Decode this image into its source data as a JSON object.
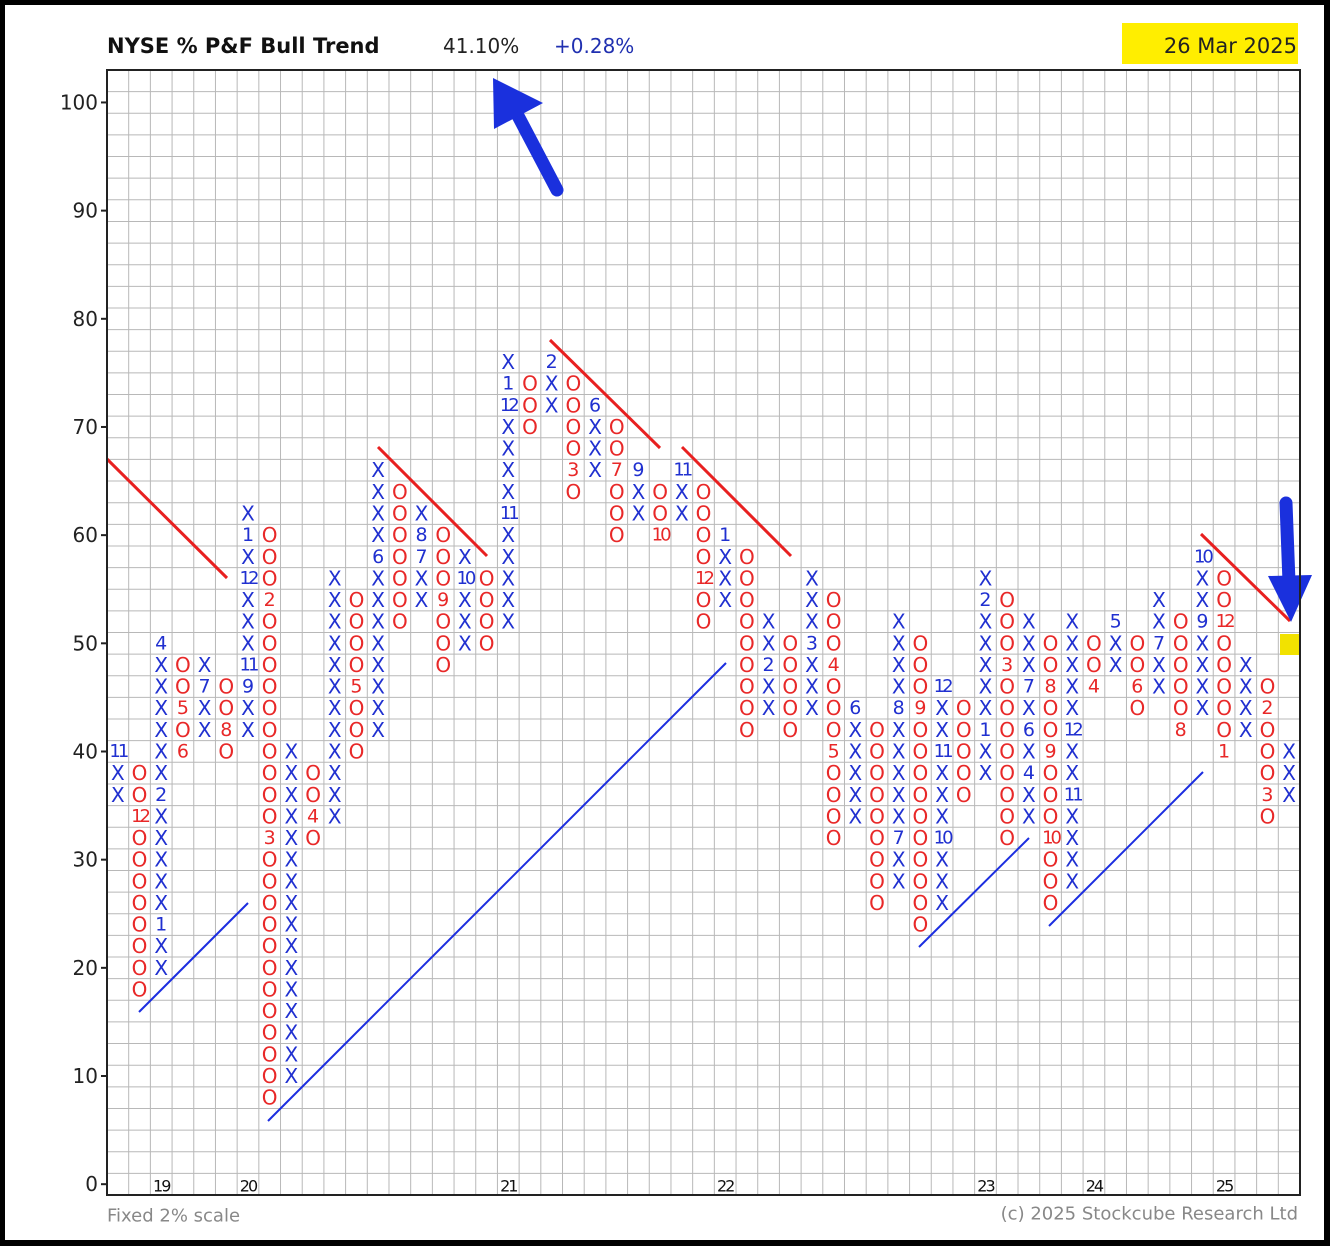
{
  "chart_data": {
    "type": "point-and-figure",
    "title": "NYSE % P&F Bull Trend",
    "reading": "41.10%",
    "change": "+0.28%",
    "date": "26 Mar 2025",
    "footnote": "Fixed 2% scale",
    "credit": "(c) 2025 Stockcube Research Ltd",
    "box_size": 2,
    "ylim": [
      -1,
      103
    ],
    "yticks": [
      0,
      10,
      20,
      30,
      40,
      50,
      60,
      70,
      80,
      90,
      100
    ],
    "grid": true,
    "x_color": "#2030d0",
    "o_color": "#e82828",
    "columns": [
      {
        "type": "X",
        "low": 36,
        "high": 40,
        "markers": [
          {
            "value": 40,
            "label": "11"
          }
        ]
      },
      {
        "type": "O",
        "low": 18,
        "high": 38,
        "markers": [
          {
            "value": 34,
            "label": "12"
          }
        ]
      },
      {
        "type": "X",
        "low": 20,
        "high": 50,
        "year": "19",
        "markers": [
          {
            "value": 24,
            "label": "1"
          },
          {
            "value": 36,
            "label": "2"
          },
          {
            "value": 50,
            "label": "4"
          }
        ]
      },
      {
        "type": "O",
        "low": 40,
        "high": 48,
        "markers": [
          {
            "value": 44,
            "label": "5"
          },
          {
            "value": 40,
            "label": "6"
          }
        ]
      },
      {
        "type": "X",
        "low": 42,
        "high": 48,
        "markers": [
          {
            "value": 46,
            "label": "7"
          }
        ]
      },
      {
        "type": "O",
        "low": 40,
        "high": 46,
        "markers": [
          {
            "value": 42,
            "label": "8"
          }
        ]
      },
      {
        "type": "X",
        "low": 42,
        "high": 62,
        "year": "20",
        "markers": [
          {
            "value": 46,
            "label": "9"
          },
          {
            "value": 48,
            "label": "11"
          },
          {
            "value": 56,
            "label": "12"
          },
          {
            "value": 60,
            "label": "1"
          }
        ]
      },
      {
        "type": "O",
        "low": 8,
        "high": 60,
        "markers": [
          {
            "value": 54,
            "label": "2"
          },
          {
            "value": 32,
            "label": "3"
          }
        ]
      },
      {
        "type": "X",
        "low": 10,
        "high": 40,
        "markers": []
      },
      {
        "type": "O",
        "low": 32,
        "high": 38,
        "markers": [
          {
            "value": 34,
            "label": "4"
          }
        ]
      },
      {
        "type": "X",
        "low": 34,
        "high": 56,
        "markers": []
      },
      {
        "type": "O",
        "low": 40,
        "high": 54,
        "markers": [
          {
            "value": 46,
            "label": "5"
          }
        ]
      },
      {
        "type": "X",
        "low": 42,
        "high": 66,
        "markers": [
          {
            "value": 58,
            "label": "6"
          }
        ]
      },
      {
        "type": "O",
        "low": 52,
        "high": 64,
        "markers": []
      },
      {
        "type": "X",
        "low": 54,
        "high": 62,
        "markers": [
          {
            "value": 58,
            "label": "7"
          },
          {
            "value": 60,
            "label": "8"
          }
        ]
      },
      {
        "type": "O",
        "low": 48,
        "high": 60,
        "markers": [
          {
            "value": 54,
            "label": "9"
          }
        ]
      },
      {
        "type": "X",
        "low": 50,
        "high": 58,
        "markers": [
          {
            "value": 56,
            "label": "10"
          }
        ]
      },
      {
        "type": "O",
        "low": 50,
        "high": 56,
        "markers": []
      },
      {
        "type": "X",
        "low": 52,
        "high": 76,
        "year": "21",
        "markers": [
          {
            "value": 62,
            "label": "11"
          },
          {
            "value": 72,
            "label": "12"
          },
          {
            "value": 74,
            "label": "1"
          }
        ]
      },
      {
        "type": "O",
        "low": 70,
        "high": 74,
        "markers": []
      },
      {
        "type": "X",
        "low": 72,
        "high": 76,
        "markers": [
          {
            "value": 76,
            "label": "2"
          }
        ]
      },
      {
        "type": "O",
        "low": 64,
        "high": 74,
        "markers": [
          {
            "value": 66,
            "label": "3"
          }
        ]
      },
      {
        "type": "X",
        "low": 66,
        "high": 72,
        "markers": [
          {
            "value": 72,
            "label": "6"
          }
        ]
      },
      {
        "type": "O",
        "low": 60,
        "high": 70,
        "markers": [
          {
            "value": 66,
            "label": "7"
          }
        ]
      },
      {
        "type": "X",
        "low": 62,
        "high": 66,
        "markers": [
          {
            "value": 66,
            "label": "9"
          }
        ]
      },
      {
        "type": "O",
        "low": 60,
        "high": 64,
        "markers": [
          {
            "value": 60,
            "label": "10"
          }
        ]
      },
      {
        "type": "X",
        "low": 62,
        "high": 66,
        "markers": [
          {
            "value": 66,
            "label": "11"
          }
        ]
      },
      {
        "type": "O",
        "low": 52,
        "high": 64,
        "markers": [
          {
            "value": 56,
            "label": "12"
          }
        ]
      },
      {
        "type": "X",
        "low": 54,
        "high": 60,
        "year": "22",
        "markers": [
          {
            "value": 60,
            "label": "1"
          }
        ]
      },
      {
        "type": "O",
        "low": 42,
        "high": 58,
        "markers": []
      },
      {
        "type": "X",
        "low": 44,
        "high": 52,
        "markers": [
          {
            "value": 48,
            "label": "2"
          }
        ]
      },
      {
        "type": "O",
        "low": 42,
        "high": 50,
        "markers": []
      },
      {
        "type": "X",
        "low": 44,
        "high": 56,
        "markers": [
          {
            "value": 50,
            "label": "3"
          }
        ]
      },
      {
        "type": "O",
        "low": 32,
        "high": 54,
        "markers": [
          {
            "value": 48,
            "label": "4"
          },
          {
            "value": 40,
            "label": "5"
          }
        ]
      },
      {
        "type": "X",
        "low": 34,
        "high": 44,
        "markers": [
          {
            "value": 44,
            "label": "6"
          }
        ]
      },
      {
        "type": "O",
        "low": 26,
        "high": 42,
        "markers": []
      },
      {
        "type": "X",
        "low": 28,
        "high": 52,
        "markers": [
          {
            "value": 32,
            "label": "7"
          },
          {
            "value": 44,
            "label": "8"
          }
        ]
      },
      {
        "type": "O",
        "low": 24,
        "high": 50,
        "markers": [
          {
            "value": 44,
            "label": "9"
          }
        ]
      },
      {
        "type": "X",
        "low": 26,
        "high": 46,
        "markers": [
          {
            "value": 32,
            "label": "10"
          },
          {
            "value": 40,
            "label": "11"
          },
          {
            "value": 46,
            "label": "12"
          }
        ]
      },
      {
        "type": "O",
        "low": 36,
        "high": 44,
        "markers": []
      },
      {
        "type": "X",
        "low": 38,
        "high": 56,
        "year": "23",
        "markers": [
          {
            "value": 42,
            "label": "1"
          },
          {
            "value": 54,
            "label": "2"
          }
        ]
      },
      {
        "type": "O",
        "low": 32,
        "high": 54,
        "markers": [
          {
            "value": 48,
            "label": "3"
          }
        ]
      },
      {
        "type": "X",
        "low": 34,
        "high": 52,
        "markers": [
          {
            "value": 38,
            "label": "4"
          },
          {
            "value": 42,
            "label": "6"
          },
          {
            "value": 46,
            "label": "7"
          }
        ]
      },
      {
        "type": "O",
        "low": 26,
        "high": 50,
        "markers": [
          {
            "value": 46,
            "label": "8"
          },
          {
            "value": 40,
            "label": "9"
          },
          {
            "value": 32,
            "label": "10"
          }
        ]
      },
      {
        "type": "X",
        "low": 28,
        "high": 52,
        "markers": [
          {
            "value": 36,
            "label": "11"
          },
          {
            "value": 42,
            "label": "12"
          }
        ]
      },
      {
        "type": "O",
        "low": 46,
        "high": 50,
        "year": "24",
        "markers": [
          {
            "value": 46,
            "label": "4"
          }
        ]
      },
      {
        "type": "X",
        "low": 48,
        "high": 52,
        "markers": [
          {
            "value": 52,
            "label": "5"
          }
        ]
      },
      {
        "type": "O",
        "low": 44,
        "high": 50,
        "markers": [
          {
            "value": 46,
            "label": "6"
          }
        ]
      },
      {
        "type": "X",
        "low": 46,
        "high": 54,
        "markers": [
          {
            "value": 50,
            "label": "7"
          }
        ]
      },
      {
        "type": "O",
        "low": 42,
        "high": 52,
        "markers": [
          {
            "value": 42,
            "label": "8"
          }
        ]
      },
      {
        "type": "X",
        "low": 44,
        "high": 58,
        "markers": [
          {
            "value": 52,
            "label": "9"
          },
          {
            "value": 58,
            "label": "10"
          }
        ]
      },
      {
        "type": "O",
        "low": 40,
        "high": 56,
        "year": "25",
        "markers": [
          {
            "value": 52,
            "label": "12"
          },
          {
            "value": 40,
            "label": "1"
          }
        ]
      },
      {
        "type": "X",
        "low": 42,
        "high": 48,
        "markers": []
      },
      {
        "type": "O",
        "low": 34,
        "high": 46,
        "markers": [
          {
            "value": 44,
            "label": "2"
          },
          {
            "value": 36,
            "label": "3"
          }
        ]
      },
      {
        "type": "X",
        "low": 36,
        "high": 40,
        "markers": []
      }
    ]
  }
}
